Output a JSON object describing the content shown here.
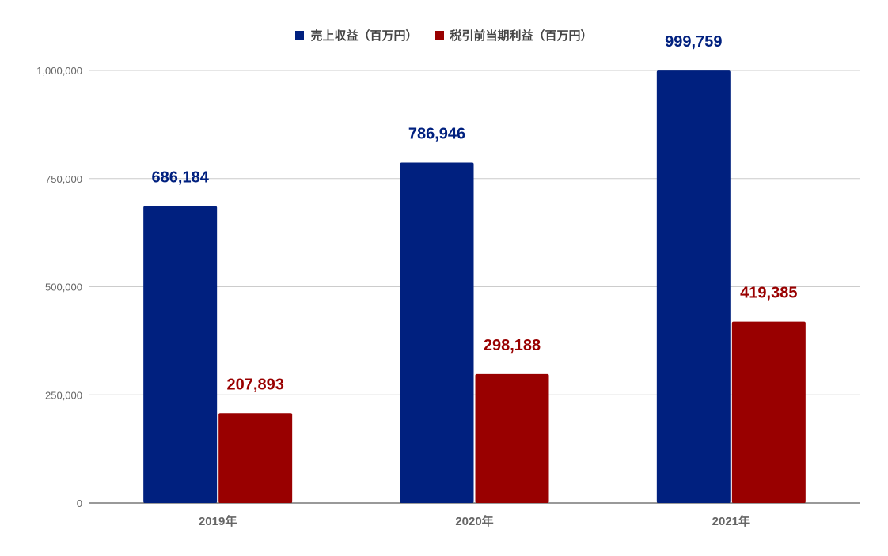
{
  "legend": {
    "series_0": "売上収益（百万円）",
    "series_1": "税引前当期利益（百万円）"
  },
  "colors": {
    "series_0": "#00207f",
    "series_1": "#990000"
  },
  "chart_data": {
    "type": "bar",
    "title": "",
    "xlabel": "",
    "ylabel": "",
    "categories": [
      "2019年",
      "2020年",
      "2021年"
    ],
    "series": [
      {
        "name": "売上収益（百万円）",
        "values": [
          686184,
          786946,
          999759
        ],
        "labels": [
          "686,184",
          "786,946",
          "999,759"
        ]
      },
      {
        "name": "税引前当期利益（百万円）",
        "values": [
          207893,
          298188,
          419385
        ],
        "labels": [
          "207,893",
          "298,188",
          "419,385"
        ]
      }
    ],
    "ylim": [
      0,
      1000000
    ],
    "yticks": [
      0,
      250000,
      500000,
      750000,
      1000000
    ],
    "ytick_labels": [
      "0",
      "250,000",
      "500,000",
      "750,000",
      "1,000,000"
    ],
    "grid": true,
    "legend_position": "top"
  }
}
